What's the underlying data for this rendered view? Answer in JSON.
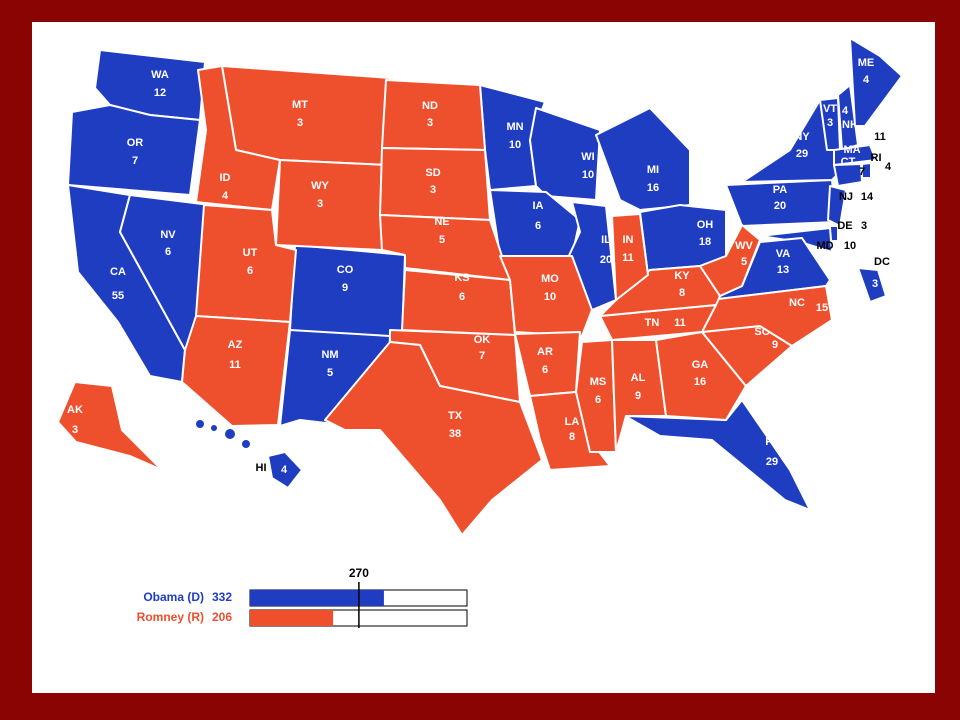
{
  "legend": {
    "threshold": 270,
    "candidates": [
      {
        "name": "Obama (D)",
        "votes": 332,
        "color": "#1f3dc0",
        "states": [
          {
            "abbr": "WA",
            "votes": 12
          },
          {
            "abbr": "OR",
            "votes": 7
          },
          {
            "abbr": "CA",
            "votes": 55
          },
          {
            "abbr": "NV",
            "votes": 6
          },
          {
            "abbr": "CO",
            "votes": 9
          },
          {
            "abbr": "NM",
            "votes": 5
          },
          {
            "abbr": "MN",
            "votes": 10
          },
          {
            "abbr": "WI",
            "votes": 10
          },
          {
            "abbr": "IA",
            "votes": 6
          },
          {
            "abbr": "IL",
            "votes": 20
          },
          {
            "abbr": "MI",
            "votes": 16
          },
          {
            "abbr": "OH",
            "votes": 18
          },
          {
            "abbr": "PA",
            "votes": 20
          },
          {
            "abbr": "NY",
            "votes": 29
          },
          {
            "abbr": "VT",
            "votes": 3
          },
          {
            "abbr": "NH",
            "votes": 4
          },
          {
            "abbr": "ME",
            "votes": 4
          },
          {
            "abbr": "MA",
            "votes": 11
          },
          {
            "abbr": "RI",
            "votes": 4
          },
          {
            "abbr": "CT",
            "votes": 7
          },
          {
            "abbr": "NJ",
            "votes": 14
          },
          {
            "abbr": "DE",
            "votes": 3
          },
          {
            "abbr": "MD",
            "votes": 10
          },
          {
            "abbr": "DC",
            "votes": 3
          },
          {
            "abbr": "VA",
            "votes": 13
          },
          {
            "abbr": "FL",
            "votes": 29
          },
          {
            "abbr": "HI",
            "votes": 4
          }
        ]
      },
      {
        "name": "Romney (R)",
        "votes": 206,
        "color": "#ee4f2c",
        "states": [
          {
            "abbr": "MT",
            "votes": 3
          },
          {
            "abbr": "ID",
            "votes": 4
          },
          {
            "abbr": "WY",
            "votes": 3
          },
          {
            "abbr": "UT",
            "votes": 6
          },
          {
            "abbr": "AZ",
            "votes": 11
          },
          {
            "abbr": "ND",
            "votes": 3
          },
          {
            "abbr": "SD",
            "votes": 3
          },
          {
            "abbr": "NE",
            "votes": 5
          },
          {
            "abbr": "KS",
            "votes": 6
          },
          {
            "abbr": "OK",
            "votes": 7
          },
          {
            "abbr": "TX",
            "votes": 38
          },
          {
            "abbr": "MO",
            "votes": 10
          },
          {
            "abbr": "AR",
            "votes": 6
          },
          {
            "abbr": "LA",
            "votes": 8
          },
          {
            "abbr": "MS",
            "votes": 6
          },
          {
            "abbr": "AL",
            "votes": 9
          },
          {
            "abbr": "GA",
            "votes": 16
          },
          {
            "abbr": "SC",
            "votes": 9
          },
          {
            "abbr": "NC",
            "votes": 15
          },
          {
            "abbr": "TN",
            "votes": 11
          },
          {
            "abbr": "KY",
            "votes": 8
          },
          {
            "abbr": "IN",
            "votes": 11
          },
          {
            "abbr": "WV",
            "votes": 5
          },
          {
            "abbr": "AK",
            "votes": 3
          }
        ]
      }
    ]
  }
}
